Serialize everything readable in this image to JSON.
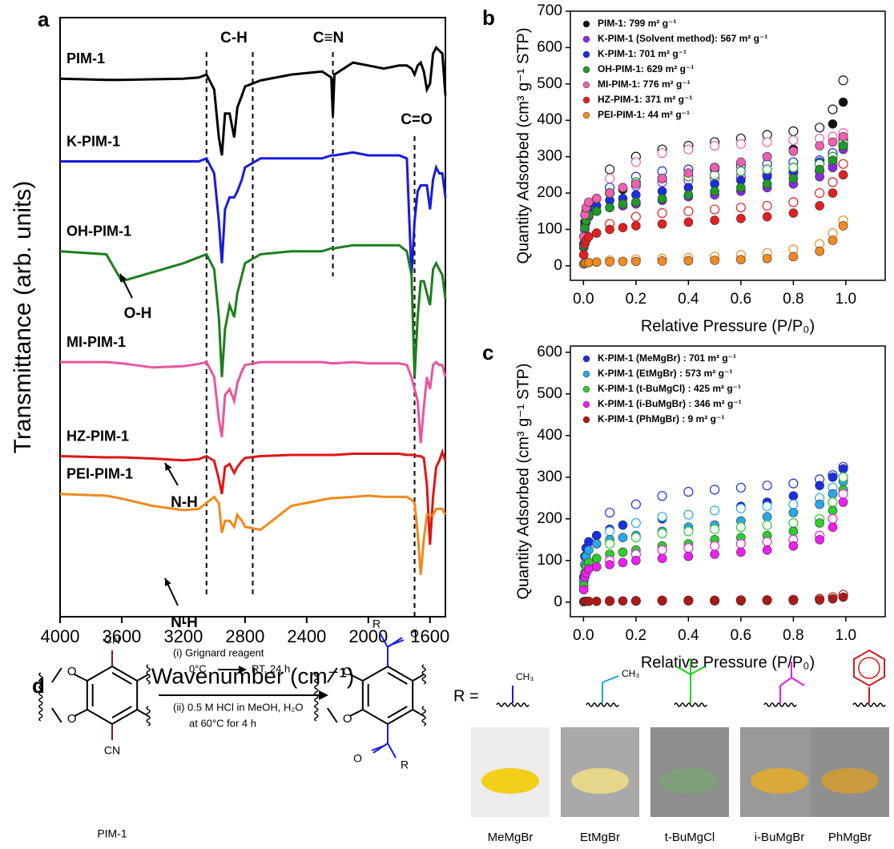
{
  "chart_data": [
    {
      "type": "line",
      "panel_label": "a",
      "xlabel": "Wavenumber (cm⁻¹)",
      "ylabel": "Transmittance (arb. units)",
      "xlim": [
        4000,
        1500
      ],
      "ylim": [
        0,
        100
      ],
      "xticks": [
        4000,
        3600,
        3200,
        2800,
        2400,
        2000,
        1600
      ],
      "x": [
        4000,
        3700,
        3600,
        3400,
        3200,
        3100,
        3050,
        3000,
        2970,
        2950,
        2930,
        2900,
        2870,
        2850,
        2820,
        2800,
        2700,
        2500,
        2300,
        2240,
        2230,
        2220,
        2100,
        2000,
        1900,
        1800,
        1750,
        1720,
        1700,
        1680,
        1660,
        1640,
        1620,
        1600,
        1580,
        1560,
        1540,
        1520,
        1500
      ],
      "series": [
        {
          "name": "PIM-1",
          "color": "#000000",
          "values": [
            89.8,
            89.6,
            89.6,
            89.7,
            89.8,
            90,
            90.5,
            88,
            80,
            77,
            84,
            84,
            80,
            85,
            87,
            88.5,
            89.5,
            90.5,
            91,
            90,
            83.5,
            90.5,
            92.5,
            92,
            91.5,
            92,
            92,
            91.5,
            90.5,
            92,
            92.5,
            91,
            88,
            89,
            94,
            95,
            94.5,
            94,
            87
          ]
        },
        {
          "name": "K-PIM-1",
          "color": "#1a1adc",
          "values": [
            76,
            76,
            76,
            76,
            76,
            76,
            76.5,
            74,
            66,
            59,
            68,
            70,
            70,
            71,
            73,
            75,
            76.5,
            76.5,
            76.5,
            77,
            77,
            77,
            77.5,
            77,
            77,
            77,
            76.5,
            57,
            66,
            71,
            72,
            72,
            72,
            68,
            73,
            75,
            74,
            74,
            70
          ]
        },
        {
          "name": "OH-PIM-1",
          "color": "#1e7d1e",
          "values": [
            61,
            60.5,
            56,
            57.5,
            59,
            60,
            60.5,
            58,
            50,
            40,
            48,
            52,
            50,
            54,
            57,
            59,
            60.5,
            61,
            61,
            61.5,
            61.5,
            61.5,
            62,
            62,
            62,
            62,
            61,
            57,
            40,
            50,
            56,
            56,
            54,
            52,
            58,
            59,
            58,
            57,
            53
          ]
        },
        {
          "name": "MI-PIM-1",
          "color": "#e8559f",
          "values": [
            42.5,
            42.5,
            42.3,
            41.6,
            41.8,
            42.2,
            42.5,
            40,
            33,
            30,
            37,
            38,
            36,
            39,
            41,
            42,
            42.5,
            42.5,
            42.5,
            42.3,
            42.3,
            42.3,
            42.5,
            42.3,
            42.3,
            42.3,
            42,
            40,
            38,
            36,
            29,
            35,
            40,
            38,
            42,
            42.5,
            42,
            42,
            40
          ]
        },
        {
          "name": "HZ-PIM-1",
          "color": "#e01515",
          "values": [
            26.8,
            26.6,
            26.6,
            26.4,
            26.1,
            26.3,
            26.8,
            26,
            23,
            20.5,
            25,
            25.5,
            24,
            25,
            26,
            26.5,
            26.8,
            27,
            27,
            27,
            27,
            27,
            27.2,
            27.2,
            27.2,
            27.2,
            27,
            27,
            27,
            26.8,
            26.8,
            26.5,
            22,
            12,
            20,
            25,
            26,
            27.5,
            26
          ]
        },
        {
          "name": "PEI-PIM-1",
          "color": "#f08a1c",
          "values": [
            20.5,
            20.2,
            19.7,
            18.5,
            17.8,
            18,
            19,
            20,
            19,
            14,
            16,
            16,
            15,
            17,
            16,
            15,
            14.5,
            18.5,
            19.5,
            19.8,
            19.8,
            19.8,
            20,
            20.2,
            20,
            20,
            20,
            19.5,
            19,
            14,
            7,
            13,
            17,
            17,
            17,
            18,
            18,
            18,
            17
          ]
        }
      ],
      "annotations": [
        "C-H",
        "C≡N",
        "C=O",
        "O-H",
        "N-H",
        "N-H"
      ],
      "reference_lines": [
        3050,
        2750,
        2230,
        1700
      ]
    },
    {
      "type": "scatter",
      "panel_label": "b",
      "xlabel": "Relative Pressure (P/P₀)",
      "ylabel": "Quantity Adsorbed (cm³ g⁻¹ STP)",
      "xlim": [
        -0.05,
        1.15
      ],
      "ylim": [
        -40,
        700
      ],
      "xticks": [
        {
          "value": 0,
          "label": "0.0"
        },
        0.2,
        0.4,
        0.6,
        0.8,
        {
          "value": 1,
          "label": "1.0"
        }
      ],
      "yticks": [
        0,
        100,
        200,
        300,
        400,
        500,
        600,
        700
      ],
      "legend": "upper left",
      "x": [
        0.001,
        0.005,
        0.01,
        0.02,
        0.05,
        0.1,
        0.15,
        0.2,
        0.3,
        0.4,
        0.5,
        0.6,
        0.7,
        0.8,
        0.9,
        0.95,
        0.99
      ],
      "desorption_x": [
        0.99,
        0.95,
        0.9,
        0.8,
        0.7,
        0.6,
        0.5,
        0.4,
        0.3,
        0.2,
        0.1
      ],
      "series": [
        {
          "name": "PIM-1: 799 m² g⁻¹",
          "color": "#111111",
          "values": [
            60,
            120,
            150,
            170,
            185,
            200,
            210,
            220,
            235,
            250,
            265,
            280,
            300,
            320,
            350,
            390,
            450
          ],
          "desorption_values": [
            510,
            430,
            380,
            370,
            360,
            350,
            340,
            330,
            320,
            300,
            265
          ]
        },
        {
          "name": "K-PIM-1 (Solvent method): 567 m² g⁻¹",
          "color": "#8a2be2",
          "values": [
            50,
            100,
            120,
            135,
            150,
            160,
            165,
            170,
            180,
            190,
            195,
            205,
            215,
            225,
            245,
            270,
            320
          ],
          "desorption_values": [
            330,
            280,
            260,
            255,
            250,
            245,
            240,
            235,
            230,
            220,
            200
          ]
        },
        {
          "name": "K-PIM-1: 701 m² g⁻¹",
          "color": "#1a2ee6",
          "values": [
            60,
            110,
            135,
            150,
            165,
            180,
            185,
            195,
            205,
            215,
            225,
            235,
            245,
            260,
            285,
            300,
            340
          ],
          "desorption_values": [
            345,
            310,
            290,
            285,
            280,
            275,
            270,
            265,
            260,
            245,
            215
          ]
        },
        {
          "name": "OH-PIM-1: 629 m² g⁻¹",
          "color": "#1f9a2a",
          "values": [
            55,
            105,
            125,
            140,
            150,
            160,
            170,
            175,
            185,
            195,
            205,
            215,
            225,
            240,
            265,
            290,
            330
          ],
          "desorption_values": [
            340,
            300,
            280,
            270,
            265,
            260,
            250,
            245,
            240,
            230,
            200
          ]
        },
        {
          "name": "MI-PIM-1: 776 m² g⁻¹",
          "color": "#ef5fae",
          "values": [
            80,
            140,
            160,
            175,
            185,
            200,
            215,
            225,
            240,
            255,
            270,
            285,
            300,
            315,
            330,
            340,
            355
          ],
          "desorption_values": [
            365,
            355,
            350,
            345,
            340,
            335,
            330,
            320,
            310,
            285,
            240
          ]
        },
        {
          "name": "HZ-PIM-1: 371 m² g⁻¹",
          "color": "#e41f1f",
          "values": [
            30,
            60,
            70,
            80,
            90,
            100,
            105,
            110,
            115,
            120,
            125,
            130,
            135,
            145,
            165,
            200,
            250
          ],
          "desorption_values": [
            280,
            230,
            200,
            175,
            165,
            160,
            155,
            150,
            145,
            135,
            115
          ]
        },
        {
          "name": "PEI-PIM-1: 44 m² g⁻¹",
          "color": "#f58a1f",
          "values": [
            5,
            7,
            8,
            9,
            10,
            11,
            12,
            12,
            13,
            14,
            15,
            17,
            20,
            25,
            40,
            70,
            110
          ],
          "desorption_values": [
            125,
            90,
            60,
            45,
            35,
            30,
            25,
            22,
            20,
            18,
            15
          ]
        }
      ]
    },
    {
      "type": "scatter",
      "panel_label": "c",
      "xlabel": "Relative Pressure (P/P₀)",
      "ylabel": "Quantity Adsorbed (cm³ g⁻¹ STP)",
      "xlim": [
        -0.05,
        1.15
      ],
      "ylim": [
        -35,
        615
      ],
      "xticks": [
        {
          "value": 0,
          "label": "0.0"
        },
        0.2,
        0.4,
        0.6,
        0.8,
        {
          "value": 1,
          "label": "1.0"
        }
      ],
      "yticks": [
        0,
        100,
        200,
        300,
        400,
        500,
        600
      ],
      "legend": "upper left",
      "x": [
        0.001,
        0.005,
        0.01,
        0.02,
        0.05,
        0.1,
        0.15,
        0.2,
        0.3,
        0.4,
        0.5,
        0.6,
        0.7,
        0.8,
        0.9,
        0.95,
        0.99
      ],
      "desorption_x": [
        0.99,
        0.95,
        0.9,
        0.8,
        0.7,
        0.6,
        0.5,
        0.4,
        0.3,
        0.2,
        0.1
      ],
      "series": [
        {
          "name": "K-PIM-1 (MeMgBr) : 701 m² g⁻¹",
          "color": "#1a2ee6",
          "values": [
            60,
            110,
            130,
            145,
            160,
            175,
            185,
            190,
            200,
            210,
            220,
            230,
            240,
            255,
            280,
            300,
            320
          ],
          "desorption_values": [
            325,
            305,
            295,
            285,
            280,
            275,
            270,
            265,
            255,
            235,
            215
          ]
        },
        {
          "name": "K-PIM-1 (EtMgBr) : 573 m² g⁻¹",
          "color": "#2aa8ec",
          "values": [
            50,
            90,
            110,
            125,
            140,
            150,
            155,
            160,
            170,
            180,
            185,
            195,
            205,
            215,
            235,
            260,
            290
          ],
          "desorption_values": [
            300,
            275,
            250,
            235,
            230,
            225,
            220,
            210,
            205,
            190,
            170
          ]
        },
        {
          "name": "K-PIM-1 (t-BuMgCl) : 425 m² g⁻¹",
          "color": "#2ccf2c",
          "values": [
            40,
            70,
            85,
            95,
            105,
            115,
            120,
            125,
            135,
            140,
            150,
            155,
            160,
            170,
            190,
            220,
            270
          ],
          "desorption_values": [
            300,
            240,
            200,
            190,
            185,
            180,
            175,
            170,
            165,
            155,
            140
          ]
        },
        {
          "name": "K-PIM-1 (i-BuMgBr) : 346 m² g⁻¹",
          "color": "#f01ef0",
          "values": [
            30,
            60,
            70,
            80,
            85,
            90,
            95,
            100,
            105,
            110,
            115,
            120,
            125,
            135,
            150,
            180,
            240
          ],
          "desorption_values": [
            260,
            200,
            160,
            150,
            145,
            140,
            135,
            130,
            125,
            115,
            100
          ]
        },
        {
          "name": "K-PIM-1 (PhMgBr) : 9 m² g⁻¹",
          "color": "#b01818",
          "values": [
            1,
            2,
            2,
            2,
            2,
            2,
            3,
            3,
            3,
            3,
            3,
            3,
            4,
            4,
            5,
            8,
            12
          ],
          "desorption_values": [
            18,
            12,
            8,
            6,
            5,
            5,
            4,
            4,
            4,
            3,
            3
          ]
        }
      ]
    }
  ],
  "scheme": {
    "label": "d",
    "reactant": {
      "name": "PIM-1",
      "groups": [
        "CN",
        "CN"
      ],
      "oxygens": [
        "O",
        "O"
      ]
    },
    "conditions": [
      "(i) Grignard reagent",
      "0°C",
      "RT, 24 h",
      "(ii) 0.5 M HCl in MeOH, H₂O",
      "at 60°C for 4 h"
    ],
    "product": {
      "groups": [
        "R",
        "R"
      ],
      "carbonyl_oxygens": [
        "O",
        "O"
      ],
      "oxygens": [
        "O",
        "O"
      ]
    },
    "r_label": "R =",
    "substituent_labels": [
      "CH₃",
      "CH₃"
    ],
    "reagents": [
      "MeMgBr",
      "EtMgBr",
      "t-BuMgCl",
      "i-BuMgBr",
      "PhMgBr"
    ]
  }
}
